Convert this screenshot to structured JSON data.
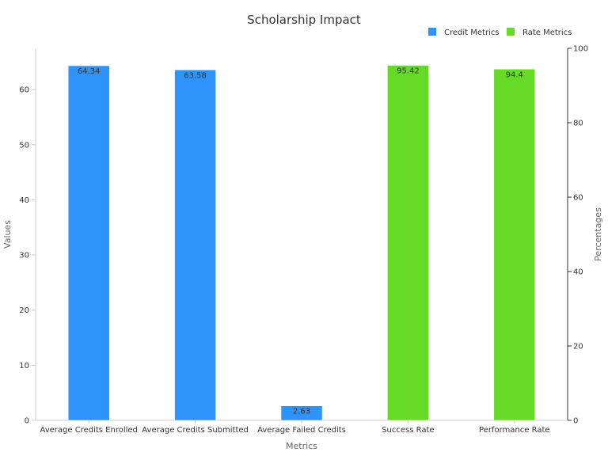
{
  "chart_data": {
    "type": "bar",
    "title": "Scholarship Impact",
    "xlabel": "Metrics",
    "ylabel": "Values",
    "y2label": "Percentages",
    "ylim": [
      0,
      67.5
    ],
    "y2lim": [
      0,
      100
    ],
    "yticks": [
      0,
      10,
      20,
      30,
      40,
      50,
      60
    ],
    "y2ticks": [
      0,
      20,
      40,
      60,
      80,
      100
    ],
    "grid": false,
    "legend_position": "top-right",
    "categories": [
      "Average Credits Enrolled",
      "Average Credits Submitted",
      "Average Failed Credits",
      "Success Rate",
      "Performance Rate"
    ],
    "series": [
      {
        "name": "Credit Metrics",
        "axis": "left",
        "color": "#2e93fa",
        "values": [
          64.34,
          63.58,
          2.63,
          null,
          null
        ],
        "labels": [
          "64.34",
          "63.58",
          "2.63",
          "",
          ""
        ]
      },
      {
        "name": "Rate Metrics",
        "axis": "right",
        "color": "#66da26",
        "values": [
          null,
          null,
          null,
          95.42,
          94.4
        ],
        "labels": [
          "",
          "",
          "",
          "95.42",
          "94.4"
        ]
      }
    ]
  }
}
